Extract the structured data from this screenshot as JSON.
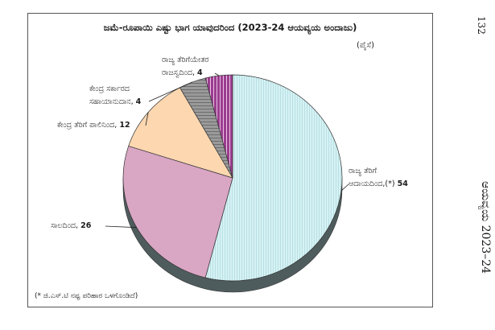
{
  "page_number": "132",
  "side_title": "ಆಯವ್ಯಯ 2023–24",
  "footnote": "(* ಜಿ.ಎಸ್.ಟಿ ನಷ್ಟ ಪರಿಹಾರ ಒಳಗೊಂಡಿದೆ)",
  "chart_data": {
    "type": "pie",
    "title": "ಜಮೆ-ರೂಪಾಯಿ ಎಷ್ಟು ಭಾಗ ಯಾವುದರಿಂದ (2023-24 ಆಯವ್ಯಯ ಅಂದಾಜು)",
    "unit": "(ಪೈಸೆ)",
    "slices": [
      {
        "label_line1": "ರಾಜ್ಯ ತೆರಿಗೆ",
        "label_line2": "ಆದಾಯದಿಂದ,(*)",
        "value": 54,
        "color": "#cfeef0"
      },
      {
        "label_line1": "",
        "label_line2": "ಸಾಲದಿಂದ,",
        "value": 26,
        "color": "#d9a6c4"
      },
      {
        "label_line1": "",
        "label_line2": "ಕೇಂದ್ರ ತೆರಿಗೆ ಪಾಲಿನಿಂದ,",
        "value": 12,
        "color": "#fcd7b0"
      },
      {
        "label_line1": "ಕೇಂದ್ರ ಸರ್ಕಾರದ",
        "label_line2": "ಸಹಾಯಾನುದಾನ,",
        "value": 4,
        "color": "#8c8c8c"
      },
      {
        "label_line1": "ರಾಜ್ಯ ತೆರಿಗೆಯೇತರ",
        "label_line2": "ರಾಜಸ್ವದಿಂದ,",
        "value": 4,
        "color": "#9b3d8f"
      }
    ]
  }
}
